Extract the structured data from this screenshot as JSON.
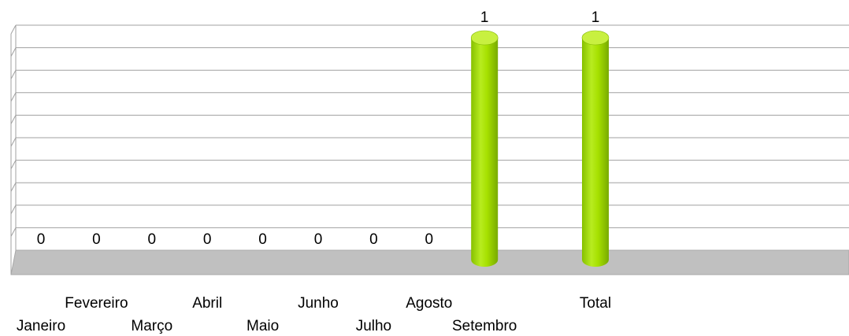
{
  "chart_data": {
    "type": "bar",
    "style": "3d-cylinder",
    "categories": [
      "Janeiro",
      "Fevereiro",
      "Março",
      "Abril",
      "Maio",
      "Junho",
      "Julho",
      "Agosto",
      "Setembro",
      "",
      "Total"
    ],
    "values": [
      0,
      0,
      0,
      0,
      0,
      0,
      0,
      0,
      1,
      null,
      1
    ],
    "data_labels": [
      "0",
      "0",
      "0",
      "0",
      "0",
      "0",
      "0",
      "0",
      "1",
      "",
      "1"
    ],
    "ylim": [
      0,
      1
    ],
    "grid": true,
    "legend": "none",
    "title": "",
    "xlabel": "",
    "ylabel": ""
  },
  "colors": {
    "bar": "#a6e000",
    "bar_shadow": "#7fb400",
    "bar_highlight": "#c8f040",
    "floor": "#c0c0c0",
    "grid": "#a0a0a0"
  }
}
